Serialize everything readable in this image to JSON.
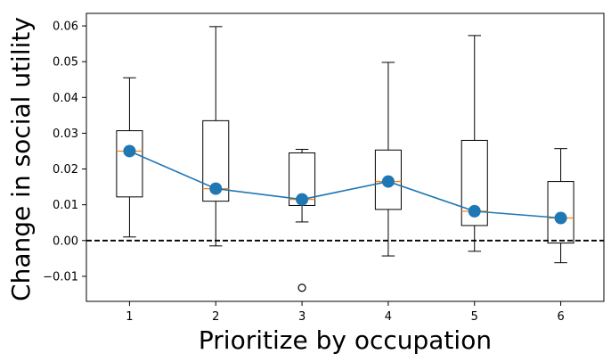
{
  "chart_data": {
    "type": "box",
    "xlabel": "Prioritize by occupation",
    "ylabel": "Change in social utility",
    "xlim": [
      0.5,
      6.5
    ],
    "ylim": [
      -0.017,
      0.0635
    ],
    "x_ticks": [
      "1",
      "2",
      "3",
      "4",
      "5",
      "6"
    ],
    "y_ticks": [
      "−0.01",
      "0.00",
      "0.01",
      "0.02",
      "0.03",
      "0.04",
      "0.05",
      "0.06"
    ],
    "y_tick_values": [
      -0.01,
      0.0,
      0.01,
      0.02,
      0.03,
      0.04,
      0.05,
      0.06
    ],
    "reference_line": {
      "y": 0.0,
      "style": "dashed",
      "color": "#000000"
    },
    "boxes": [
      {
        "x": 1,
        "whisker_low": 0.001,
        "q1": 0.0122,
        "median": 0.025,
        "q3": 0.0307,
        "whisker_high": 0.0455,
        "outliers": []
      },
      {
        "x": 2,
        "whisker_low": -0.0015,
        "q1": 0.011,
        "median": 0.0145,
        "q3": 0.0335,
        "whisker_high": 0.0598,
        "outliers": []
      },
      {
        "x": 3,
        "whisker_low": 0.0052,
        "q1": 0.0098,
        "median": 0.0115,
        "q3": 0.0245,
        "whisker_high": 0.0255,
        "outliers": [
          -0.0132
        ]
      },
      {
        "x": 4,
        "whisker_low": -0.0043,
        "q1": 0.0087,
        "median": 0.0165,
        "q3": 0.0253,
        "whisker_high": 0.0498,
        "outliers": []
      },
      {
        "x": 5,
        "whisker_low": -0.003,
        "q1": 0.0042,
        "median": 0.0082,
        "q3": 0.028,
        "whisker_high": 0.0573,
        "outliers": []
      },
      {
        "x": 6,
        "whisker_low": -0.0062,
        "q1": -0.0007,
        "median": 0.0063,
        "q3": 0.0165,
        "whisker_high": 0.0257,
        "outliers": []
      }
    ],
    "mean_line": {
      "x": [
        1,
        2,
        3,
        4,
        5,
        6
      ],
      "y": [
        0.025,
        0.0145,
        0.0115,
        0.0165,
        0.0082,
        0.0063
      ],
      "color": "#1f77b4"
    },
    "colors": {
      "box": "#000000",
      "median": "#ff7f0e",
      "mean_marker": "#1f77b4",
      "mean_line": "#1f77b4"
    },
    "grid": false
  }
}
